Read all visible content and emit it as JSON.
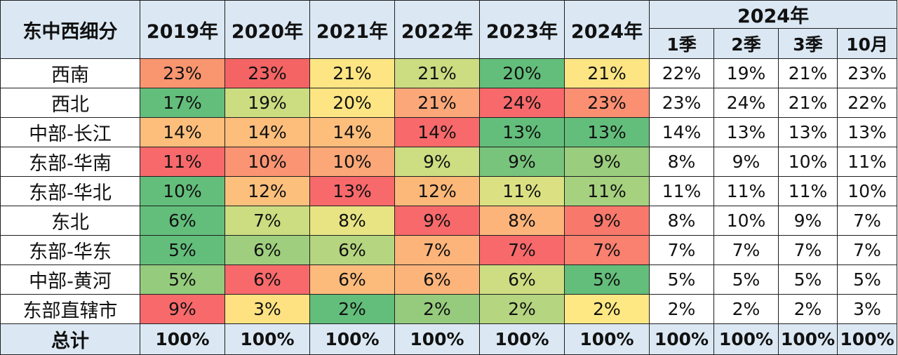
{
  "chart_data": {
    "type": "heatmap",
    "title": "",
    "row_header": "东中西细分",
    "year_columns": [
      "2019年",
      "2020年",
      "2021年",
      "2022年",
      "2023年",
      "2024年"
    ],
    "period_group": "2024年",
    "period_columns": [
      "1季",
      "2季",
      "3季",
      "10月"
    ],
    "rows": [
      {
        "label": "西南",
        "years": [
          "23%",
          "23%",
          "21%",
          "21%",
          "20%",
          "21%"
        ],
        "periods": [
          "22%",
          "19%",
          "21%",
          "23%"
        ]
      },
      {
        "label": "西北",
        "years": [
          "17%",
          "19%",
          "20%",
          "21%",
          "24%",
          "23%"
        ],
        "periods": [
          "23%",
          "24%",
          "21%",
          "22%"
        ]
      },
      {
        "label": "中部-长江",
        "years": [
          "14%",
          "14%",
          "14%",
          "14%",
          "13%",
          "13%"
        ],
        "periods": [
          "14%",
          "13%",
          "13%",
          "13%"
        ]
      },
      {
        "label": "东部-华南",
        "years": [
          "11%",
          "10%",
          "10%",
          "9%",
          "9%",
          "9%"
        ],
        "periods": [
          "8%",
          "9%",
          "10%",
          "11%"
        ]
      },
      {
        "label": "东部-华北",
        "years": [
          "10%",
          "12%",
          "13%",
          "12%",
          "11%",
          "11%"
        ],
        "periods": [
          "11%",
          "11%",
          "11%",
          "10%"
        ]
      },
      {
        "label": "东北",
        "years": [
          "6%",
          "7%",
          "8%",
          "9%",
          "8%",
          "9%"
        ],
        "periods": [
          "8%",
          "10%",
          "9%",
          "7%"
        ]
      },
      {
        "label": "东部-华东",
        "years": [
          "5%",
          "6%",
          "6%",
          "7%",
          "7%",
          "7%"
        ],
        "periods": [
          "7%",
          "7%",
          "7%",
          "7%"
        ]
      },
      {
        "label": "中部-黄河",
        "years": [
          "5%",
          "6%",
          "6%",
          "6%",
          "6%",
          "5%"
        ],
        "periods": [
          "5%",
          "5%",
          "5%",
          "5%"
        ]
      },
      {
        "label": "东部直辖市",
        "years": [
          "9%",
          "3%",
          "2%",
          "2%",
          "2%",
          "2%"
        ],
        "periods": [
          "2%",
          "2%",
          "2%",
          "3%"
        ]
      }
    ],
    "total": {
      "label": "总计",
      "years": [
        "100%",
        "100%",
        "100%",
        "100%",
        "100%",
        "100%"
      ],
      "periods": [
        "100%",
        "100%",
        "100%",
        "100%"
      ]
    },
    "cell_colors": [
      [
        "#f9956f",
        "#f46465",
        "#fde583",
        "#cbdc81",
        "#63be7b",
        "#fde583"
      ],
      [
        "#63be7b",
        "#cbdc81",
        "#fde583",
        "#fba779",
        "#f8696b",
        "#fa8f72"
      ],
      [
        "#fdbe7c",
        "#fdbe7c",
        "#fdbe7c",
        "#f8696b",
        "#63be7b",
        "#63be7b"
      ],
      [
        "#f8696b",
        "#fa9473",
        "#fba777",
        "#cddd82",
        "#79c47d",
        "#9acd7e"
      ],
      [
        "#63be7b",
        "#fdc07c",
        "#f8696b",
        "#fcb879",
        "#dbe182",
        "#a6d17f"
      ],
      [
        "#63be7b",
        "#cbdc81",
        "#e8e483",
        "#f8696b",
        "#fcb47a",
        "#f8786c"
      ],
      [
        "#63be7b",
        "#9fcf7e",
        "#b5d580",
        "#fcb47a",
        "#f8696b",
        "#fa8070"
      ],
      [
        "#94cb7d",
        "#f8696b",
        "#fcbb7b",
        "#fcb47a",
        "#cfdd82",
        "#63be7b"
      ],
      [
        "#f8696b",
        "#fee282",
        "#63be7b",
        "#96cb7d",
        "#b5d580",
        "#fee883"
      ]
    ]
  }
}
